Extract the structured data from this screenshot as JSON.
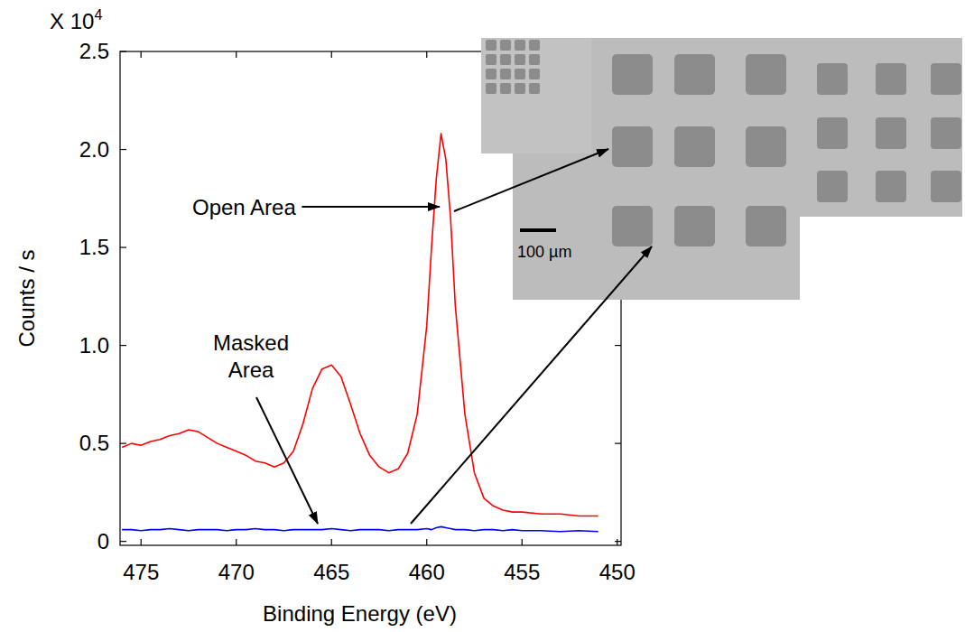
{
  "chart_data": {
    "type": "line",
    "x_label": "Binding Energy (eV)",
    "y_label": "Counts / s",
    "y_multiplier": {
      "base": "X 10",
      "exponent": "4"
    },
    "x": [
      476,
      475.5,
      475,
      474.5,
      474,
      473.5,
      473,
      472.5,
      472,
      471.5,
      471,
      470.5,
      470,
      469.5,
      469,
      468.5,
      468,
      467.5,
      467,
      466.5,
      466,
      465.5,
      465,
      464.5,
      464,
      463.5,
      463,
      462.5,
      462,
      461.5,
      461,
      460.5,
      460,
      459.75,
      459.5,
      459.25,
      459,
      458.75,
      458.5,
      458,
      457.5,
      457,
      456.5,
      456,
      455.5,
      455,
      454,
      453,
      452,
      451
    ],
    "series": [
      {
        "name": "Open Area",
        "color": "#ff0000",
        "line_style": "solid",
        "values": [
          0.48,
          0.5,
          0.49,
          0.51,
          0.52,
          0.54,
          0.55,
          0.57,
          0.56,
          0.53,
          0.5,
          0.48,
          0.46,
          0.44,
          0.41,
          0.4,
          0.38,
          0.4,
          0.46,
          0.6,
          0.78,
          0.88,
          0.9,
          0.84,
          0.7,
          0.55,
          0.44,
          0.38,
          0.35,
          0.37,
          0.45,
          0.65,
          1.1,
          1.5,
          1.85,
          2.08,
          1.95,
          1.65,
          1.2,
          0.65,
          0.35,
          0.22,
          0.18,
          0.16,
          0.15,
          0.15,
          0.14,
          0.14,
          0.13,
          0.13
        ]
      },
      {
        "name": "Masked Area",
        "color": "#0000ff",
        "line_style": "solid",
        "values": [
          0.06,
          0.06,
          0.055,
          0.06,
          0.06,
          0.065,
          0.06,
          0.055,
          0.06,
          0.06,
          0.06,
          0.055,
          0.06,
          0.06,
          0.065,
          0.06,
          0.06,
          0.055,
          0.06,
          0.06,
          0.06,
          0.06,
          0.065,
          0.06,
          0.055,
          0.06,
          0.06,
          0.06,
          0.055,
          0.06,
          0.06,
          0.06,
          0.065,
          0.06,
          0.07,
          0.075,
          0.07,
          0.065,
          0.06,
          0.06,
          0.055,
          0.06,
          0.06,
          0.055,
          0.06,
          0.055,
          0.055,
          0.05,
          0.055,
          0.05
        ]
      }
    ],
    "xlim": [
      476.1,
      449.8
    ],
    "xticks": [
      475,
      470,
      465,
      460,
      455,
      450
    ],
    "ylim": [
      -0.02,
      2.5
    ],
    "yticks": [
      0,
      0.5,
      {
        "value": 1,
        "label": "1.0"
      },
      1.5,
      {
        "value": 2,
        "label": "2.0"
      },
      2.5
    ],
    "grid": false,
    "inset": {
      "scale_bar_label": "100 µm"
    }
  }
}
